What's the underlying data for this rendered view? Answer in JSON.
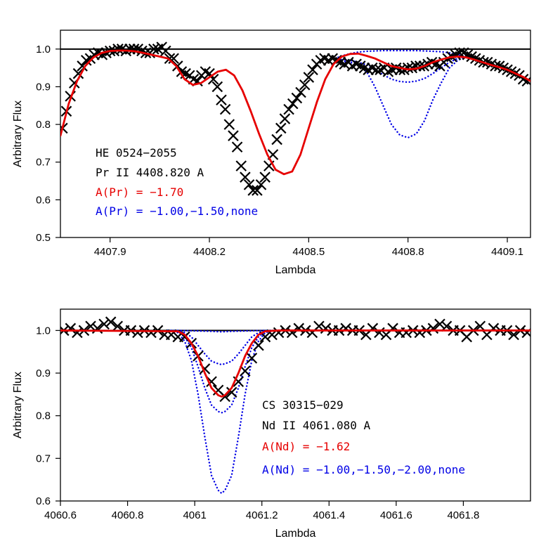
{
  "colors": {
    "observed": "#000000",
    "best_fit": "#e60000",
    "comparison": "#0000e6",
    "reference_line": "#000000"
  },
  "chart_data": [
    {
      "type": "line",
      "xlabel": "Lambda",
      "ylabel": "Arbitrary Flux",
      "xlim": [
        4407.75,
        4409.17
      ],
      "ylim": [
        0.5,
        1.05
      ],
      "x_ticks": [
        4407.9,
        4408.2,
        4408.5,
        4408.8,
        4409.1
      ],
      "x_tick_labels": [
        "4407.9",
        "4408.2",
        "4408.5",
        "4408.8",
        "4409.1"
      ],
      "y_ticks": [
        0.5,
        0.6,
        0.7,
        0.8,
        0.9,
        1.0
      ],
      "y_tick_labels": [
        "0.5",
        "0.6",
        "0.7",
        "0.8",
        "0.9",
        "1.0"
      ],
      "annotations": [
        {
          "text": "HE 0524−2055",
          "color": "black"
        },
        {
          "text": "Pr II 4408.820 A",
          "color": "black"
        },
        {
          "text": "A(Pr) = −1.70",
          "color": "red"
        },
        {
          "text": "A(Pr) = −1.00,−1.50,none",
          "color": "blue"
        }
      ],
      "reference_line": 1.0,
      "series": [
        {
          "style": "crosses",
          "color": "black",
          "x": [
            4407.756,
            4407.768,
            4407.78,
            4407.792,
            4407.804,
            4407.816,
            4407.828,
            4407.84,
            4407.852,
            4407.864,
            4407.876,
            4407.888,
            4407.9,
            4407.912,
            4407.924,
            4407.936,
            4407.948,
            4407.96,
            4407.972,
            4407.984,
            4407.996,
            4408.008,
            4408.02,
            4408.032,
            4408.044,
            4408.056,
            4408.068,
            4408.08,
            4408.092,
            4408.104,
            4408.116,
            4408.128,
            4408.14,
            4408.152,
            4408.164,
            4408.176,
            4408.188,
            4408.2,
            4408.212,
            4408.224,
            4408.236,
            4408.248,
            4408.26,
            4408.272,
            4408.284,
            4408.296,
            4408.308,
            4408.32,
            4408.332,
            4408.344,
            4408.356,
            4408.368,
            4408.38,
            4408.392,
            4408.404,
            4408.416,
            4408.428,
            4408.44,
            4408.452,
            4408.464,
            4408.476,
            4408.488,
            4408.5,
            4408.512,
            4408.524,
            4408.536,
            4408.548,
            4408.56,
            4408.572,
            4408.584,
            4408.596,
            4408.608,
            4408.62,
            4408.632,
            4408.644,
            4408.656,
            4408.668,
            4408.68,
            4408.692,
            4408.704,
            4408.716,
            4408.728,
            4408.74,
            4408.752,
            4408.764,
            4408.776,
            4408.788,
            4408.8,
            4408.812,
            4408.824,
            4408.836,
            4408.848,
            4408.86,
            4408.872,
            4408.884,
            4408.896,
            4408.908,
            4408.92,
            4408.932,
            4408.944,
            4408.956,
            4408.968,
            4408.98,
            4408.992,
            4409.004,
            4409.016,
            4409.028,
            4409.04,
            4409.052,
            4409.064,
            4409.076,
            4409.088,
            4409.1,
            4409.112,
            4409.124,
            4409.136,
            4409.148,
            4409.16
          ],
          "y": [
            0.79,
            0.835,
            0.875,
            0.91,
            0.935,
            0.955,
            0.97,
            0.975,
            0.985,
            0.99,
            0.985,
            0.99,
            0.995,
            0.995,
            1.0,
            1.0,
            0.995,
            1.0,
            1.0,
            1.0,
            0.995,
            0.99,
            0.99,
            1.0,
            1.0,
            1.005,
            0.995,
            0.975,
            0.975,
            0.955,
            0.94,
            0.935,
            0.93,
            0.92,
            0.915,
            0.93,
            0.94,
            0.935,
            0.92,
            0.9,
            0.865,
            0.84,
            0.8,
            0.77,
            0.74,
            0.69,
            0.66,
            0.64,
            0.625,
            0.625,
            0.64,
            0.66,
            0.69,
            0.72,
            0.76,
            0.79,
            0.815,
            0.84,
            0.855,
            0.87,
            0.885,
            0.905,
            0.925,
            0.945,
            0.96,
            0.97,
            0.975,
            0.97,
            0.975,
            0.97,
            0.965,
            0.96,
            0.965,
            0.955,
            0.96,
            0.955,
            0.95,
            0.945,
            0.95,
            0.945,
            0.945,
            0.95,
            0.94,
            0.945,
            0.95,
            0.945,
            0.945,
            0.95,
            0.95,
            0.955,
            0.955,
            0.955,
            0.96,
            0.965,
            0.96,
            0.955,
            0.965,
            0.975,
            0.98,
            0.985,
            0.99,
            0.99,
            0.985,
            0.98,
            0.975,
            0.97,
            0.965,
            0.965,
            0.96,
            0.955,
            0.955,
            0.95,
            0.945,
            0.94,
            0.935,
            0.93,
            0.92,
            0.915
          ]
        },
        {
          "style": "solid",
          "color": "red",
          "x": [
            4407.75,
            4407.775,
            4407.8,
            4407.825,
            4407.85,
            4407.875,
            4407.9,
            4407.925,
            4407.95,
            4407.975,
            4408.0,
            4408.025,
            4408.05,
            4408.075,
            4408.1,
            4408.125,
            4408.15,
            4408.175,
            4408.2,
            4408.225,
            4408.25,
            4408.275,
            4408.3,
            4408.325,
            4408.35,
            4408.375,
            4408.4,
            4408.425,
            4408.45,
            4408.475,
            4408.5,
            4408.525,
            4408.55,
            4408.575,
            4408.6,
            4408.625,
            4408.65,
            4408.675,
            4408.7,
            4408.725,
            4408.75,
            4408.775,
            4408.8,
            4408.825,
            4408.85,
            4408.875,
            4408.9,
            4408.925,
            4408.95,
            4408.975,
            4409.0,
            4409.025,
            4409.05,
            4409.075,
            4409.1,
            4409.125,
            4409.15,
            4409.17
          ],
          "y": [
            0.77,
            0.855,
            0.915,
            0.955,
            0.978,
            0.99,
            0.995,
            0.996,
            0.996,
            0.994,
            0.99,
            0.985,
            0.98,
            0.975,
            0.955,
            0.92,
            0.905,
            0.91,
            0.925,
            0.94,
            0.945,
            0.93,
            0.89,
            0.835,
            0.775,
            0.72,
            0.68,
            0.668,
            0.675,
            0.72,
            0.79,
            0.86,
            0.92,
            0.96,
            0.98,
            0.987,
            0.988,
            0.982,
            0.975,
            0.965,
            0.955,
            0.95,
            0.946,
            0.948,
            0.955,
            0.965,
            0.972,
            0.978,
            0.98,
            0.978,
            0.972,
            0.965,
            0.958,
            0.952,
            0.945,
            0.935,
            0.925,
            0.915
          ]
        },
        {
          "style": "dotted",
          "color": "blue",
          "x": [
            4408.58,
            4408.6,
            4408.625,
            4408.65,
            4408.675,
            4408.7,
            4408.725,
            4408.75,
            4408.775,
            4408.8,
            4408.825,
            4408.85,
            4408.875,
            4408.9,
            4408.925,
            4408.95,
            4408.975,
            4409.0
          ],
          "y": [
            0.965,
            0.968,
            0.965,
            0.958,
            0.94,
            0.9,
            0.85,
            0.8,
            0.772,
            0.765,
            0.775,
            0.81,
            0.865,
            0.91,
            0.95,
            0.97,
            0.98,
            0.982
          ]
        },
        {
          "style": "dotted",
          "color": "blue",
          "x": [
            4408.58,
            4408.6,
            4408.625,
            4408.65,
            4408.675,
            4408.7,
            4408.725,
            4408.75,
            4408.775,
            4408.8,
            4408.825,
            4408.85,
            4408.875,
            4408.9,
            4408.925,
            4408.95,
            4408.975,
            4409.0
          ],
          "y": [
            0.968,
            0.972,
            0.97,
            0.965,
            0.958,
            0.945,
            0.932,
            0.92,
            0.914,
            0.912,
            0.915,
            0.922,
            0.935,
            0.95,
            0.965,
            0.975,
            0.981,
            0.983
          ]
        },
        {
          "style": "dotted",
          "color": "blue",
          "x": [
            4408.58,
            4408.6,
            4408.625,
            4408.65,
            4408.675,
            4408.7,
            4408.725,
            4408.75,
            4408.775,
            4408.8,
            4408.825,
            4408.85,
            4408.875,
            4408.9,
            4408.925,
            4408.95,
            4408.975,
            4409.0
          ],
          "y": [
            0.975,
            0.982,
            0.988,
            0.992,
            0.994,
            0.995,
            0.996,
            0.996,
            0.996,
            0.996,
            0.996,
            0.995,
            0.994,
            0.993,
            0.99,
            0.985,
            0.98,
            0.978
          ]
        }
      ]
    },
    {
      "type": "line",
      "xlabel": "Lambda",
      "ylabel": "Arbitrary Flux",
      "xlim": [
        4060.6,
        4062.0
      ],
      "ylim": [
        0.6,
        1.05
      ],
      "x_ticks": [
        4060.6,
        4060.8,
        4061.0,
        4061.2,
        4061.4,
        4061.6,
        4061.8
      ],
      "x_tick_labels": [
        "4060.6",
        "4060.8",
        "4061",
        "4061.2",
        "4061.4",
        "4061.6",
        "4061.8"
      ],
      "y_ticks": [
        0.6,
        0.7,
        0.8,
        0.9,
        1.0
      ],
      "y_tick_labels": [
        "0.6",
        "0.7",
        "0.8",
        "0.9",
        "1.0"
      ],
      "annotations": [
        {
          "text": "CS 30315−029",
          "color": "black"
        },
        {
          "text": "Nd II 4061.080 A",
          "color": "black"
        },
        {
          "text": "A(Nd) = −1.62",
          "color": "red"
        },
        {
          "text": "A(Nd) = −1.00,−1.50,−2.00,none",
          "color": "blue"
        }
      ],
      "reference_line": 1.0,
      "series": [
        {
          "style": "crosses",
          "color": "black",
          "x": [
            4060.61,
            4060.63,
            4060.65,
            4060.67,
            4060.69,
            4060.71,
            4060.73,
            4060.75,
            4060.77,
            4060.79,
            4060.81,
            4060.83,
            4060.85,
            4060.87,
            4060.89,
            4060.91,
            4060.93,
            4060.95,
            4060.97,
            4060.99,
            4061.01,
            4061.03,
            4061.05,
            4061.07,
            4061.09,
            4061.11,
            4061.13,
            4061.15,
            4061.17,
            4061.19,
            4061.21,
            4061.23,
            4061.25,
            4061.27,
            4061.29,
            4061.31,
            4061.33,
            4061.35,
            4061.37,
            4061.39,
            4061.41,
            4061.43,
            4061.45,
            4061.47,
            4061.49,
            4061.51,
            4061.53,
            4061.55,
            4061.57,
            4061.59,
            4061.61,
            4061.63,
            4061.65,
            4061.67,
            4061.69,
            4061.71,
            4061.73,
            4061.75,
            4061.77,
            4061.79,
            4061.81,
            4061.83,
            4061.85,
            4061.87,
            4061.89,
            4061.91,
            4061.93,
            4061.95,
            4061.97,
            4061.99
          ],
          "y": [
            1.0,
            1.005,
            0.995,
            1.0,
            1.01,
            1.005,
            1.015,
            1.02,
            1.01,
            1.0,
            1.0,
            0.995,
            1.0,
            0.995,
            1.0,
            0.99,
            0.99,
            0.985,
            0.985,
            0.97,
            0.94,
            0.91,
            0.88,
            0.86,
            0.845,
            0.855,
            0.88,
            0.905,
            0.935,
            0.965,
            0.985,
            0.99,
            0.995,
            1.0,
            0.995,
            1.005,
            1.0,
            0.995,
            1.01,
            1.005,
            1.0,
            1.0,
            1.005,
            1.0,
            1.0,
            0.99,
            1.005,
            0.995,
            0.99,
            1.005,
            0.995,
            0.995,
            1.0,
            0.995,
            1.0,
            1.005,
            1.015,
            1.01,
            1.0,
            1.0,
            0.985,
            1.0,
            1.01,
            0.99,
            1.005,
            1.0,
            1.0,
            0.99,
            1.0,
            0.995
          ]
        },
        {
          "style": "solid",
          "color": "red",
          "x": [
            4060.6,
            4060.95,
            4060.97,
            4060.99,
            4061.01,
            4061.03,
            4061.05,
            4061.07,
            4061.08,
            4061.09,
            4061.11,
            4061.13,
            4061.15,
            4061.17,
            4061.19,
            4061.21,
            4061.25,
            4062.0
          ],
          "y": [
            1.0,
            0.998,
            0.99,
            0.97,
            0.94,
            0.9,
            0.865,
            0.848,
            0.845,
            0.848,
            0.865,
            0.9,
            0.94,
            0.97,
            0.99,
            0.998,
            1.0,
            1.0
          ]
        },
        {
          "style": "dotted",
          "color": "blue",
          "x": [
            4060.92,
            4060.95,
            4060.97,
            4060.99,
            4061.01,
            4061.03,
            4061.05,
            4061.07,
            4061.08,
            4061.09,
            4061.11,
            4061.13,
            4061.15,
            4061.17,
            4061.19,
            4061.21,
            4061.24
          ],
          "y": [
            1.0,
            0.995,
            0.975,
            0.93,
            0.85,
            0.75,
            0.66,
            0.625,
            0.618,
            0.625,
            0.66,
            0.75,
            0.85,
            0.93,
            0.975,
            0.995,
            1.0
          ]
        },
        {
          "style": "dotted",
          "color": "blue",
          "x": [
            4060.92,
            4060.95,
            4060.97,
            4060.99,
            4061.01,
            4061.03,
            4061.05,
            4061.07,
            4061.08,
            4061.09,
            4061.11,
            4061.13,
            4061.15,
            4061.17,
            4061.19,
            4061.21,
            4061.24
          ],
          "y": [
            1.0,
            0.998,
            0.985,
            0.96,
            0.915,
            0.865,
            0.825,
            0.81,
            0.807,
            0.81,
            0.825,
            0.865,
            0.915,
            0.96,
            0.985,
            0.998,
            1.0
          ]
        },
        {
          "style": "dotted",
          "color": "blue",
          "x": [
            4060.92,
            4060.95,
            4060.97,
            4060.99,
            4061.01,
            4061.03,
            4061.05,
            4061.07,
            4061.08,
            4061.09,
            4061.11,
            4061.13,
            4061.15,
            4061.17,
            4061.19,
            4061.21,
            4061.24
          ],
          "y": [
            1.0,
            0.999,
            0.995,
            0.985,
            0.965,
            0.945,
            0.928,
            0.922,
            0.92,
            0.922,
            0.928,
            0.945,
            0.965,
            0.985,
            0.995,
            0.999,
            1.0
          ]
        },
        {
          "style": "dotted",
          "color": "blue",
          "x": [
            4060.92,
            4060.95,
            4061.0,
            4061.05,
            4061.08,
            4061.11,
            4061.16,
            4061.21,
            4061.24
          ],
          "y": [
            1.0,
            1.0,
            0.999,
            0.998,
            0.997,
            0.998,
            0.999,
            1.0,
            1.0
          ]
        }
      ]
    }
  ]
}
